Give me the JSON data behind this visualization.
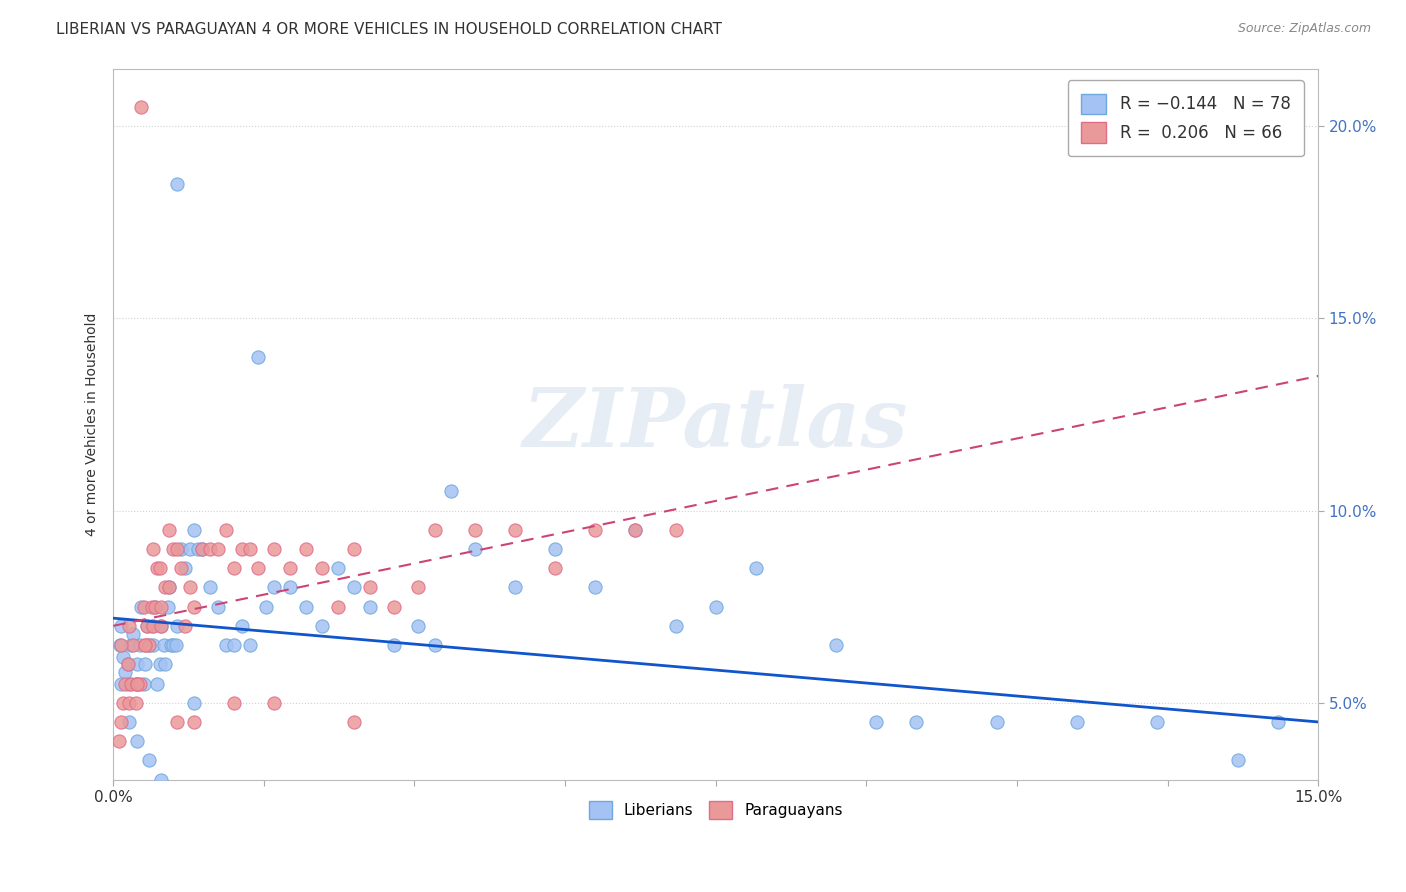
{
  "title": "LIBERIAN VS PARAGUAYAN 4 OR MORE VEHICLES IN HOUSEHOLD CORRELATION CHART",
  "source": "Source: ZipAtlas.com",
  "ylabel": "4 or more Vehicles in Household",
  "liberian_R": -0.144,
  "liberian_N": 78,
  "paraguayan_R": 0.206,
  "paraguayan_N": 66,
  "liberian_color": "#a4c2f4",
  "paraguayan_color": "#ea9999",
  "liberian_line_color": "#1155cc",
  "paraguayan_line_color": "#cc4477",
  "watermark": "ZIPatlas",
  "title_fontsize": 11,
  "source_fontsize": 9,
  "xlim": [
    0.0,
    15.0
  ],
  "ylim_bottom": 3.0,
  "ylim_top": 21.5,
  "ytick_vals": [
    5.0,
    10.0,
    15.0,
    20.0
  ],
  "ytick_labels": [
    "5.0%",
    "10.0%",
    "15.0%",
    "20.0%"
  ],
  "liberian_line_x0": 0.0,
  "liberian_line_y0": 7.2,
  "liberian_line_x1": 15.0,
  "liberian_line_y1": 4.5,
  "paraguayan_line_x0": 0.0,
  "paraguayan_line_y0": 7.0,
  "paraguayan_line_x1": 15.0,
  "paraguayan_line_y1": 13.5,
  "liberian_x": [
    0.08,
    0.1,
    0.12,
    0.15,
    0.18,
    0.2,
    0.22,
    0.25,
    0.28,
    0.3,
    0.33,
    0.35,
    0.38,
    0.4,
    0.42,
    0.45,
    0.48,
    0.5,
    0.52,
    0.55,
    0.58,
    0.6,
    0.63,
    0.65,
    0.68,
    0.7,
    0.72,
    0.75,
    0.78,
    0.8,
    0.85,
    0.9,
    0.95,
    1.0,
    1.05,
    1.1,
    1.2,
    1.3,
    1.4,
    1.5,
    1.6,
    1.7,
    1.8,
    1.9,
    2.0,
    2.2,
    2.4,
    2.6,
    2.8,
    3.0,
    3.2,
    3.5,
    3.8,
    4.0,
    4.2,
    4.5,
    5.0,
    5.5,
    6.0,
    6.5,
    7.0,
    7.5,
    8.0,
    9.0,
    9.5,
    10.0,
    11.0,
    12.0,
    13.0,
    14.0,
    14.5,
    0.1,
    0.2,
    0.3,
    0.45,
    0.6,
    0.8,
    1.0
  ],
  "liberian_y": [
    6.5,
    7.0,
    6.2,
    5.8,
    6.0,
    5.5,
    6.5,
    6.8,
    5.5,
    6.0,
    6.5,
    7.5,
    5.5,
    6.0,
    7.0,
    6.5,
    7.0,
    6.5,
    7.5,
    5.5,
    6.0,
    7.0,
    6.5,
    6.0,
    7.5,
    8.0,
    6.5,
    6.5,
    6.5,
    7.0,
    9.0,
    8.5,
    9.0,
    9.5,
    9.0,
    9.0,
    8.0,
    7.5,
    6.5,
    6.5,
    7.0,
    6.5,
    14.0,
    7.5,
    8.0,
    8.0,
    7.5,
    7.0,
    8.5,
    8.0,
    7.5,
    6.5,
    7.0,
    6.5,
    10.5,
    9.0,
    8.0,
    9.0,
    8.0,
    9.5,
    7.0,
    7.5,
    8.5,
    6.5,
    4.5,
    4.5,
    4.5,
    4.5,
    4.5,
    3.5,
    4.5,
    5.5,
    4.5,
    4.0,
    3.5,
    3.0,
    18.5,
    5.0
  ],
  "paraguayan_x": [
    0.07,
    0.1,
    0.12,
    0.15,
    0.18,
    0.2,
    0.22,
    0.25,
    0.28,
    0.3,
    0.33,
    0.35,
    0.38,
    0.4,
    0.42,
    0.45,
    0.48,
    0.5,
    0.52,
    0.55,
    0.58,
    0.6,
    0.65,
    0.7,
    0.75,
    0.8,
    0.85,
    0.9,
    0.95,
    1.0,
    1.1,
    1.2,
    1.3,
    1.4,
    1.5,
    1.6,
    1.7,
    1.8,
    2.0,
    2.2,
    2.4,
    2.6,
    2.8,
    3.0,
    3.2,
    3.5,
    3.8,
    4.0,
    4.5,
    5.0,
    5.5,
    6.0,
    6.5,
    7.0,
    0.1,
    0.2,
    0.3,
    0.4,
    0.5,
    0.6,
    0.7,
    0.8,
    1.0,
    1.5,
    2.0,
    3.0
  ],
  "paraguayan_y": [
    4.0,
    4.5,
    5.0,
    5.5,
    6.0,
    5.0,
    5.5,
    6.5,
    5.0,
    5.5,
    5.5,
    20.5,
    7.5,
    6.5,
    7.0,
    6.5,
    7.5,
    7.0,
    7.5,
    8.5,
    8.5,
    7.0,
    8.0,
    8.0,
    9.0,
    9.0,
    8.5,
    7.0,
    8.0,
    7.5,
    9.0,
    9.0,
    9.0,
    9.5,
    8.5,
    9.0,
    9.0,
    8.5,
    9.0,
    8.5,
    9.0,
    8.5,
    7.5,
    9.0,
    8.0,
    7.5,
    8.0,
    9.5,
    9.5,
    9.5,
    8.5,
    9.5,
    9.5,
    9.5,
    6.5,
    7.0,
    5.5,
    6.5,
    9.0,
    7.5,
    9.5,
    4.5,
    4.5,
    5.0,
    5.0,
    4.5
  ]
}
